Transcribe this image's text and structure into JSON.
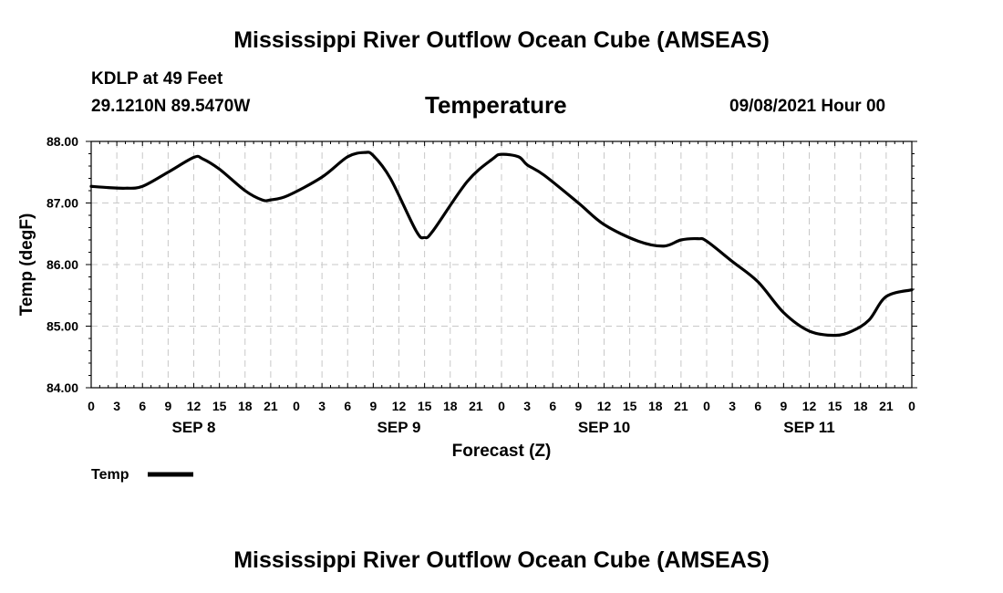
{
  "page": {
    "title_top": "Mississippi River Outflow Ocean Cube (AMSEAS)",
    "title_bottom": "Mississippi River Outflow Ocean Cube (AMSEAS)",
    "station": "KDLP at 49 Feet",
    "coords": "29.1210N  89.5470W",
    "datetime": "09/08/2021 Hour 00"
  },
  "chart_data": {
    "type": "line",
    "title": "Temperature",
    "xlabel": "Forecast (Z)",
    "ylabel": "Temp (degF)",
    "x_unit": "forecast hour",
    "xlim": [
      0,
      96
    ],
    "ylim": [
      84,
      88
    ],
    "grid": true,
    "yticks": [
      {
        "value": 84,
        "label": "84.00"
      },
      {
        "value": 85,
        "label": "85.00"
      },
      {
        "value": 86,
        "label": "86.00"
      },
      {
        "value": 87,
        "label": "87.00"
      },
      {
        "value": 88,
        "label": "88.00"
      }
    ],
    "xtick_labels": [
      "0",
      "3",
      "6",
      "9",
      "12",
      "15",
      "18",
      "21",
      "0",
      "3",
      "6",
      "9",
      "12",
      "15",
      "18",
      "21",
      "0",
      "3",
      "6",
      "9",
      "12",
      "15",
      "18",
      "21",
      "0",
      "3",
      "6",
      "9",
      "12",
      "15",
      "18",
      "21",
      "0"
    ],
    "day_labels": [
      {
        "hour": 12,
        "label": "SEP 8"
      },
      {
        "hour": 36,
        "label": "SEP 9"
      },
      {
        "hour": 60,
        "label": "SEP 10"
      },
      {
        "hour": 84,
        "label": "SEP 11"
      }
    ],
    "legend": {
      "label": "Temp",
      "placement": "bottom-left"
    },
    "series": [
      {
        "name": "Temp",
        "color": "#000000",
        "x": [
          0,
          2,
          4,
          6,
          9,
          12,
          13,
          15,
          18,
          20,
          21,
          23,
          27,
          30,
          32,
          33,
          35,
          38,
          39,
          40,
          44,
          47,
          48,
          50,
          51,
          53,
          57,
          60,
          64,
          67,
          69,
          71,
          72,
          75,
          78,
          81,
          84,
          87,
          89,
          91,
          93,
          96
        ],
        "values": [
          87.27,
          87.25,
          87.24,
          87.27,
          87.5,
          87.74,
          87.72,
          87.55,
          87.2,
          87.05,
          87.05,
          87.12,
          87.42,
          87.75,
          87.82,
          87.77,
          87.4,
          86.55,
          86.44,
          86.55,
          87.35,
          87.72,
          87.79,
          87.75,
          87.62,
          87.45,
          87.0,
          86.65,
          86.38,
          86.3,
          86.4,
          86.42,
          86.38,
          86.05,
          85.72,
          85.22,
          84.92,
          84.85,
          84.92,
          85.1,
          85.48,
          85.59
        ]
      }
    ]
  }
}
